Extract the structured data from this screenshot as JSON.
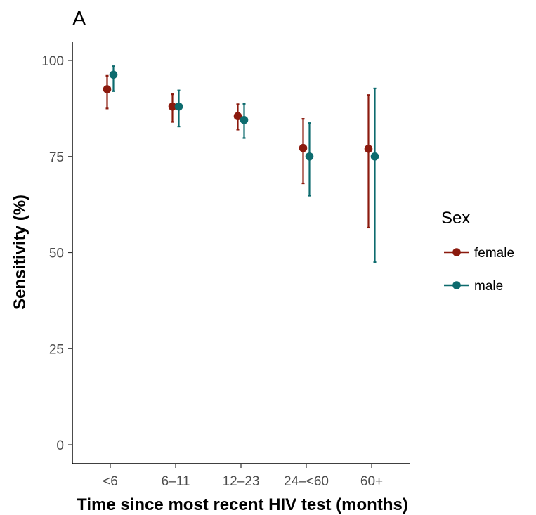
{
  "chart_data": {
    "type": "scatter",
    "panel_tag": "A",
    "xlabel": "Time since most recent HIV test (months)",
    "ylabel": "Sensitivity (%)",
    "categories": [
      "<6",
      "6–11",
      "12–23",
      "24–<60",
      "60+"
    ],
    "ylim": [
      0,
      100
    ],
    "yticks": [
      0,
      25,
      50,
      75,
      100
    ],
    "grid": false,
    "legend": {
      "title": "Sex",
      "position": "right"
    },
    "series": [
      {
        "name": "female",
        "color": "#8b1a0e",
        "values": [
          92.5,
          88.0,
          85.5,
          77.2,
          77.0
        ],
        "lower": [
          87.5,
          84.0,
          82.0,
          68.0,
          56.5
        ],
        "upper": [
          96.0,
          91.2,
          88.6,
          84.8,
          91.0
        ]
      },
      {
        "name": "male",
        "color": "#0d6b6e",
        "values": [
          96.3,
          88.0,
          84.5,
          75.0,
          75.0
        ],
        "lower": [
          92.0,
          82.8,
          79.8,
          64.8,
          47.5
        ],
        "upper": [
          98.5,
          92.2,
          88.7,
          83.7,
          92.7
        ]
      }
    ]
  }
}
